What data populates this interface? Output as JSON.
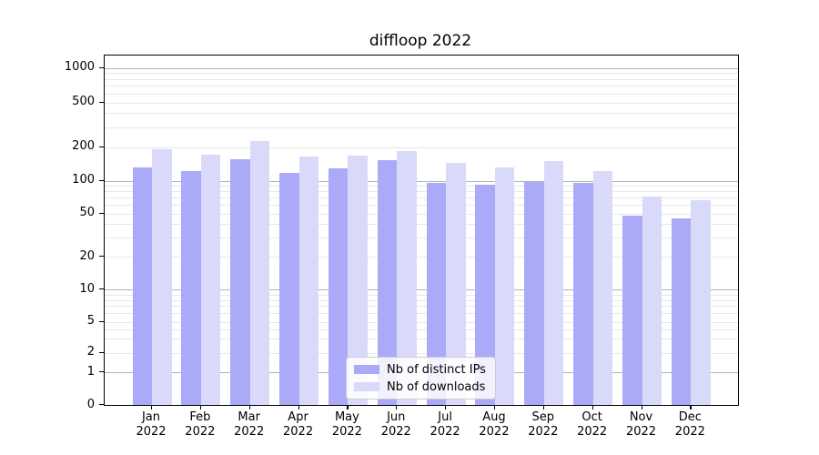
{
  "chart_data": {
    "type": "bar",
    "title": "diffloop 2022",
    "categories": [
      "Jan 2022",
      "Feb 2022",
      "Mar 2022",
      "Apr 2022",
      "May 2022",
      "Jun 2022",
      "Jul 2022",
      "Aug 2022",
      "Sep 2022",
      "Oct 2022",
      "Nov 2022",
      "Dec 2022"
    ],
    "series": [
      {
        "name": "Nb of distinct IPs",
        "color": "#aaaaf8",
        "values": [
          131,
          122,
          156,
          117,
          128,
          153,
          96,
          92,
          97,
          96,
          48,
          45
        ]
      },
      {
        "name": "Nb of downloads",
        "color": "#d9d9fa",
        "values": [
          192,
          172,
          226,
          163,
          169,
          183,
          144,
          131,
          151,
          121,
          71,
          66
        ]
      }
    ],
    "xlabel": "",
    "ylabel": "",
    "yscale": "symlog",
    "ylim": [
      0,
      1300
    ],
    "yticks": [
      0,
      1,
      2,
      5,
      10,
      20,
      50,
      100,
      200,
      500,
      1000
    ],
    "major_yticks": [
      1,
      10,
      100,
      1000
    ],
    "minor_gridline_values": [
      3,
      4,
      6,
      7,
      8,
      9,
      30,
      40,
      60,
      70,
      80,
      90,
      300,
      400,
      600,
      700,
      800,
      900
    ],
    "grid": true,
    "legend_position": "lower center",
    "colors": {
      "grid_major": "#b3b3b3",
      "grid_minor": "#e8e8e8",
      "spine": "#000000",
      "legend_border": "#cccccc"
    }
  }
}
